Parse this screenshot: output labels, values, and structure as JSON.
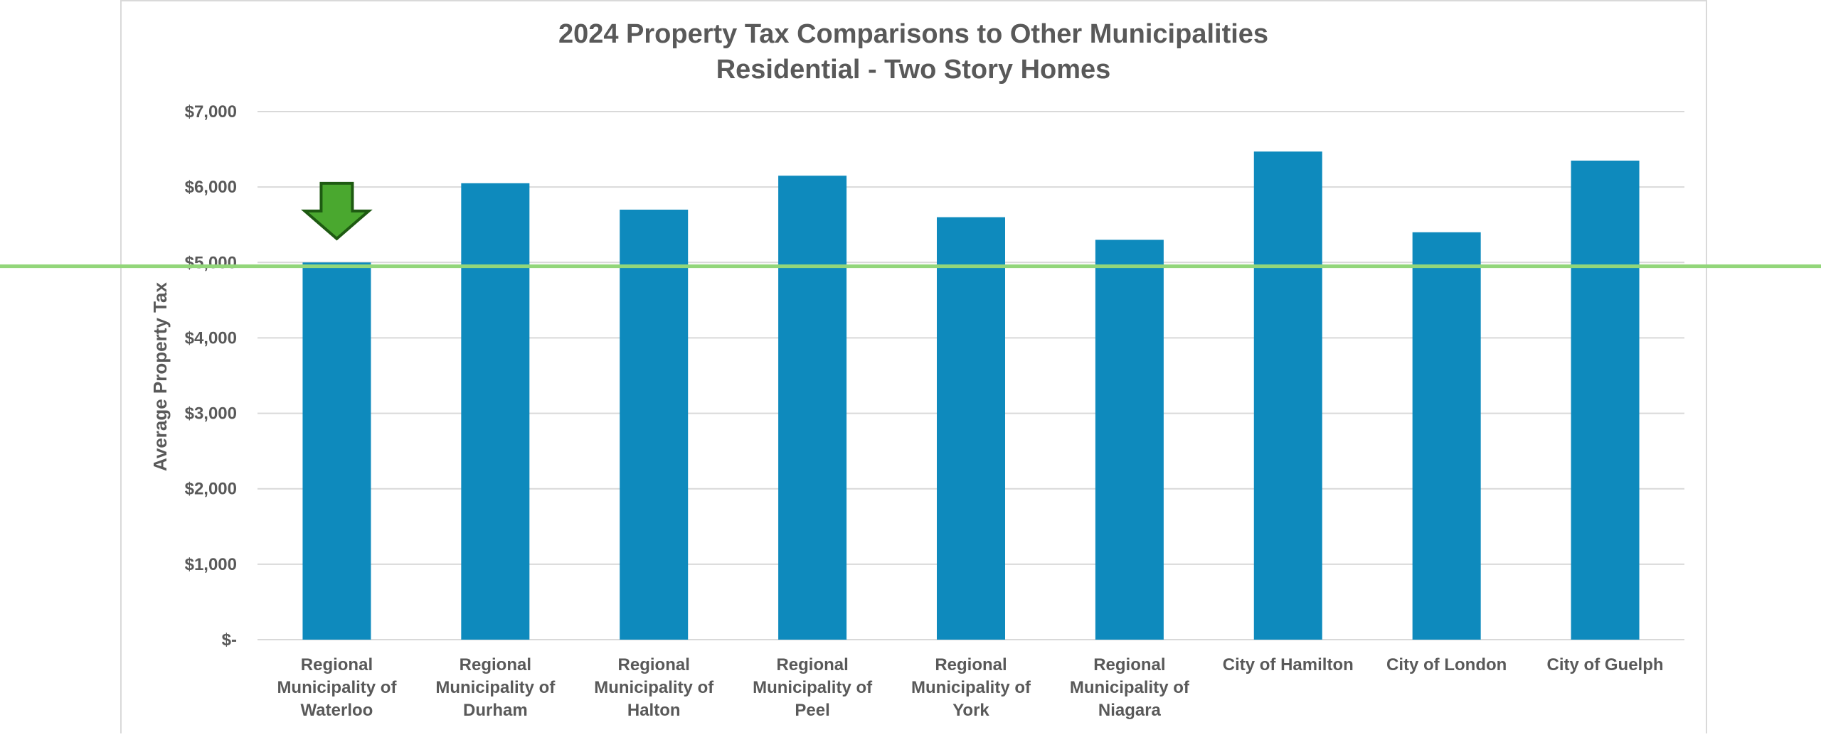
{
  "chart_data": {
    "type": "bar",
    "title": "2024 Property Tax Comparisons to Other Municipalities",
    "subtitle": "Residential - Two Story Homes",
    "xlabel": "",
    "ylabel": "Average Property Tax",
    "ylim": [
      0,
      7000
    ],
    "grid": true,
    "y_ticks": [
      0,
      1000,
      2000,
      3000,
      4000,
      5000,
      6000,
      7000
    ],
    "y_tick_labels": [
      "$-",
      "$1,000",
      "$2,000",
      "$3,000",
      "$4,000",
      "$5,000",
      "$6,000",
      "$7,000"
    ],
    "categories": [
      [
        "Regional",
        "Municipality of",
        "Waterloo"
      ],
      [
        "Regional",
        "Municipality of",
        "Durham"
      ],
      [
        "Regional",
        "Municipality of",
        "Halton"
      ],
      [
        "Regional",
        "Municipality of",
        "Peel"
      ],
      [
        "Regional",
        "Municipality of",
        "York"
      ],
      [
        "Regional",
        "Municipality of",
        "Niagara"
      ],
      [
        "City of Hamilton"
      ],
      [
        "City of London"
      ],
      [
        "City of Guelph"
      ]
    ],
    "values": [
      5000,
      6050,
      5700,
      6150,
      5600,
      5300,
      6470,
      5400,
      6350
    ],
    "reference_line": {
      "value": 4950,
      "color": "#92d67a"
    },
    "highlight": {
      "category_index": 0,
      "marker": "down-arrow-icon",
      "color": "#4aa82f",
      "stroke": "#1e5a12"
    },
    "bar_color": "#0e8abd"
  }
}
